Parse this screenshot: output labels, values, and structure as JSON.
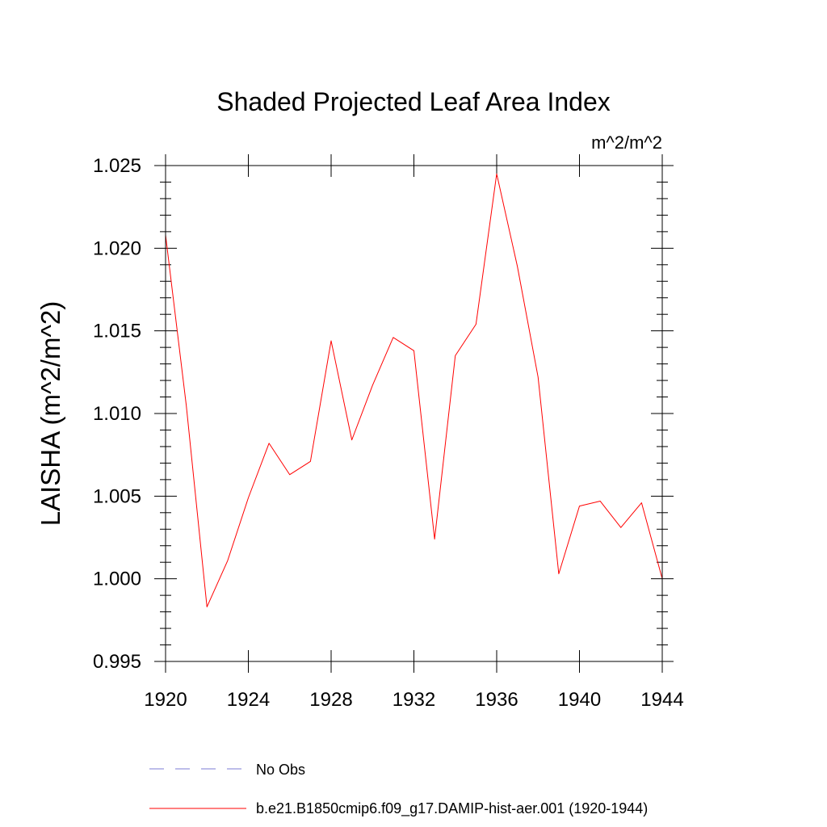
{
  "chart_data": {
    "type": "line",
    "title": "Shaded Projected Leaf Area Index",
    "units_label": "m^2/m^2",
    "ylabel": "LAISHA  (m^2/m^2)",
    "xlabel": "",
    "xlim": [
      1920,
      1944
    ],
    "ylim": [
      0.995,
      1.025
    ],
    "x_ticks": [
      1920,
      1924,
      1928,
      1932,
      1936,
      1940,
      1944
    ],
    "x_tick_labels": [
      "1920",
      "1924",
      "1928",
      "1932",
      "1936",
      "1940",
      "1944"
    ],
    "y_ticks": [
      0.995,
      1.0,
      1.005,
      1.01,
      1.015,
      1.02,
      1.025
    ],
    "y_tick_labels": [
      "0.995",
      "1.000",
      "1.005",
      "1.010",
      "1.015",
      "1.020",
      "1.025"
    ],
    "grid": false,
    "legend_placement": "bottom",
    "series": [
      {
        "name": "b.e21.B1850cmip6.f09_g17.DAMIP-hist-aer.001 (1920-1944)",
        "color": "#ff0000",
        "style": "solid",
        "x": [
          1920,
          1921,
          1922,
          1923,
          1924,
          1925,
          1926,
          1927,
          1928,
          1929,
          1930,
          1931,
          1932,
          1933,
          1934,
          1935,
          1936,
          1937,
          1938,
          1939,
          1940,
          1941,
          1942,
          1943,
          1944
        ],
        "y": [
          1.0208,
          1.0105,
          0.9983,
          1.0011,
          1.0049,
          1.0082,
          1.0063,
          1.0071,
          1.0144,
          1.0084,
          1.0117,
          1.0146,
          1.0138,
          1.0024,
          1.0135,
          1.0154,
          1.0245,
          1.0189,
          1.0122,
          1.0003,
          1.0044,
          1.0047,
          1.0031,
          1.0046,
          1.0
        ]
      }
    ],
    "legend": [
      {
        "label": "No Obs",
        "color": "#7b7bd6",
        "style": "dashed"
      },
      {
        "label": "b.e21.B1850cmip6.f09_g17.DAMIP-hist-aer.001 (1920-1944)",
        "color": "#ff0000",
        "style": "solid"
      }
    ]
  }
}
